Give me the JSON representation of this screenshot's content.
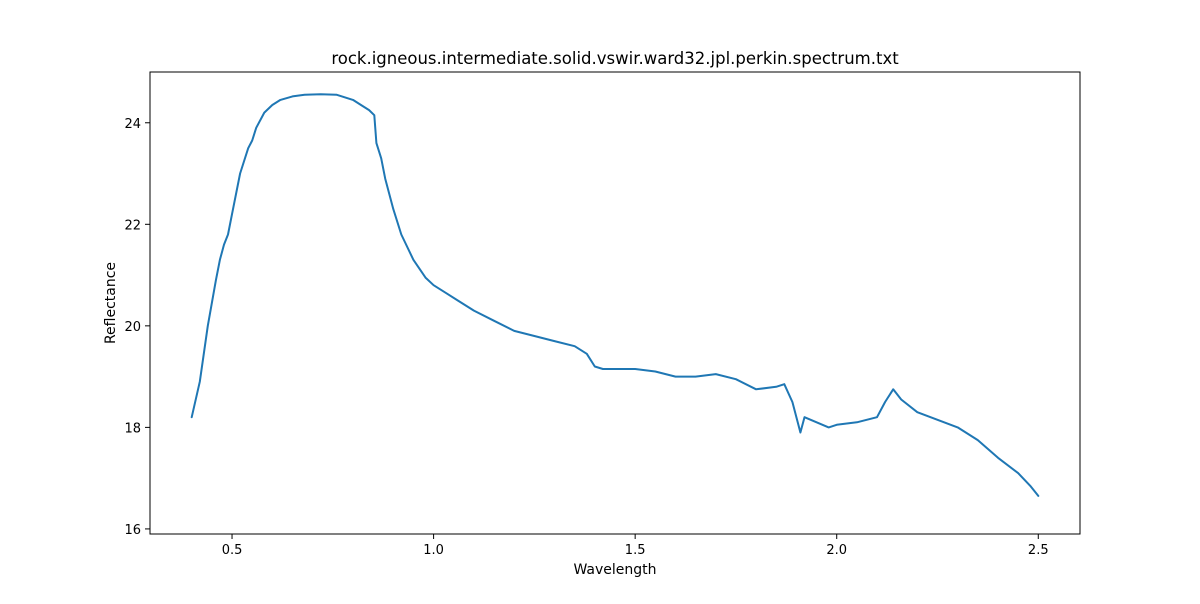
{
  "chart_data": {
    "type": "line",
    "title": "rock.igneous.intermediate.solid.vswir.ward32.jpl.perkin.spectrum.txt",
    "xlabel": "Wavelength",
    "ylabel": "Reflectance",
    "xlim": [
      0.2965,
      2.6035
    ],
    "ylim": [
      15.9,
      25.0
    ],
    "grid": false,
    "x_ticks": [
      0.5,
      1.0,
      1.5,
      2.0,
      2.5
    ],
    "x_tick_labels": [
      "0.5",
      "1.0",
      "1.5",
      "2.0",
      "2.5"
    ],
    "y_ticks": [
      16,
      18,
      20,
      22,
      24
    ],
    "y_tick_labels": [
      "16",
      "18",
      "20",
      "22",
      "24"
    ],
    "colors": {
      "line": "#1f77b4",
      "axes": "#000000"
    },
    "series": [
      {
        "x": [
          0.4,
          0.42,
          0.44,
          0.46,
          0.47,
          0.48,
          0.49,
          0.5,
          0.52,
          0.54,
          0.55,
          0.56,
          0.58,
          0.6,
          0.62,
          0.65,
          0.68,
          0.72,
          0.76,
          0.8,
          0.82,
          0.84,
          0.853,
          0.858,
          0.87,
          0.88,
          0.9,
          0.92,
          0.95,
          0.98,
          1.0,
          1.03,
          1.06,
          1.1,
          1.15,
          1.2,
          1.25,
          1.3,
          1.35,
          1.38,
          1.4,
          1.42,
          1.45,
          1.5,
          1.55,
          1.6,
          1.65,
          1.7,
          1.75,
          1.8,
          1.85,
          1.87,
          1.89,
          1.91,
          1.92,
          1.95,
          1.98,
          2.0,
          2.05,
          2.1,
          2.12,
          2.14,
          2.16,
          2.2,
          2.25,
          2.3,
          2.35,
          2.4,
          2.45,
          2.48,
          2.49,
          2.5
        ],
        "y": [
          18.2,
          18.9,
          20.0,
          20.9,
          21.3,
          21.6,
          21.8,
          22.2,
          23.0,
          23.5,
          23.65,
          23.9,
          24.2,
          24.35,
          24.45,
          24.52,
          24.55,
          24.56,
          24.55,
          24.45,
          24.35,
          24.25,
          24.15,
          23.6,
          23.3,
          22.9,
          22.3,
          21.8,
          21.3,
          20.95,
          20.8,
          20.65,
          20.5,
          20.3,
          20.1,
          19.9,
          19.8,
          19.7,
          19.6,
          19.45,
          19.2,
          19.15,
          19.15,
          19.15,
          19.1,
          19.0,
          19.0,
          19.05,
          18.95,
          18.75,
          18.8,
          18.85,
          18.5,
          17.9,
          18.2,
          18.1,
          18.0,
          18.05,
          18.1,
          18.2,
          18.5,
          18.75,
          18.55,
          18.3,
          18.15,
          18.0,
          17.75,
          17.4,
          17.1,
          16.85,
          16.75,
          16.65
        ]
      }
    ]
  }
}
